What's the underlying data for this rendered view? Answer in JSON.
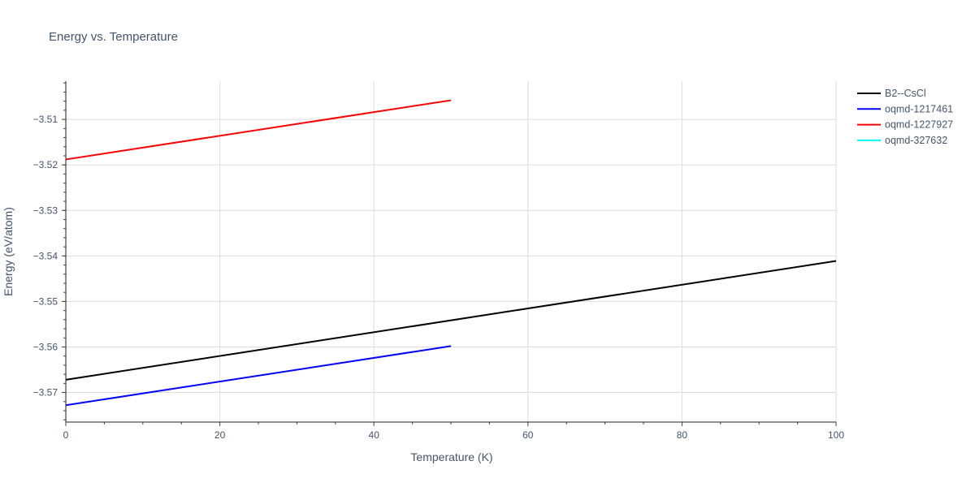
{
  "chart_data": {
    "type": "line",
    "title": "Energy vs. Temperature",
    "xlabel": "Temperature (K)",
    "ylabel": "Energy (eV/atom)",
    "xlim": [
      0,
      100
    ],
    "ylim": [
      -3.5765,
      -3.5016
    ],
    "x_ticks": [
      0,
      20,
      40,
      60,
      80,
      100
    ],
    "y_ticks": [
      -3.51,
      -3.52,
      -3.53,
      -3.54,
      -3.55,
      -3.56,
      -3.57
    ],
    "x_tick_labels": [
      "0",
      "20",
      "40",
      "60",
      "80",
      "100"
    ],
    "y_tick_labels": [
      "−3.51",
      "−3.52",
      "−3.53",
      "−3.54",
      "−3.55",
      "−3.56",
      "−3.57"
    ],
    "grid": true,
    "legend_position": "top-right",
    "series": [
      {
        "name": "B2--CsCl",
        "color": "#000000",
        "x": [
          0,
          100
        ],
        "y": [
          -3.5672,
          -3.5411
        ]
      },
      {
        "name": "oqmd-1217461",
        "color": "#0000ff",
        "x": [
          0,
          50
        ],
        "y": [
          -3.5728,
          -3.5598
        ]
      },
      {
        "name": "oqmd-1227927",
        "color": "#ff0000",
        "x": [
          0,
          50
        ],
        "y": [
          -3.5188,
          -3.5058
        ]
      },
      {
        "name": "oqmd-327632",
        "color": "#00ffff",
        "x": [],
        "y": []
      }
    ]
  }
}
